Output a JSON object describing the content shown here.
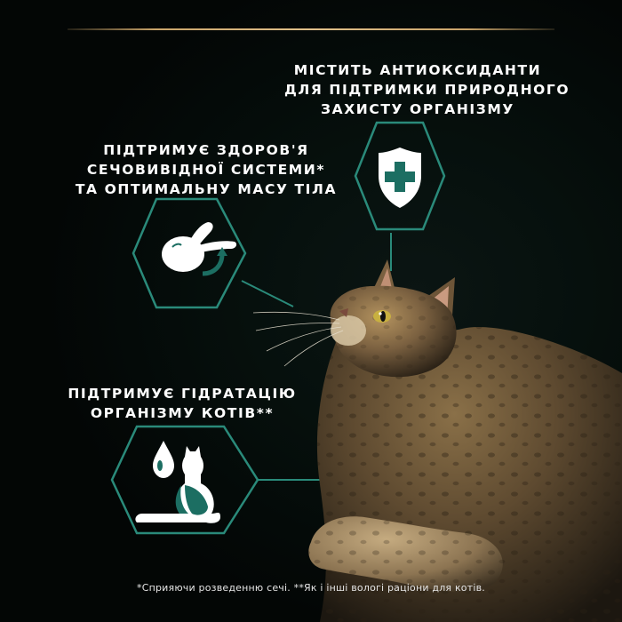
{
  "colors": {
    "background": "#050807",
    "accent_gold": "#c9a46a",
    "teal": "#1c6e62",
    "teal_outline": "#2a8a7a",
    "text": "#ffffff"
  },
  "benefits": {
    "antioxidants": {
      "lines": [
        "МІСТИТЬ АНТИОКСИДАНТИ",
        "ДЛЯ ПІДТРИМКИ ПРИРОДНОГО",
        "ЗАХИСТУ ОРГАНІЗМУ"
      ],
      "icon": "shield-cross-icon"
    },
    "urinary": {
      "lines": [
        "ПІДТРИМУЄ ЗДОРОВ'Я",
        "СЕЧОВИВІДНОЇ СИСТЕМИ*",
        "ТА ОПТИМАЛЬНУ МАСУ ТІЛА"
      ],
      "icon": "kidney-bladder-icon"
    },
    "hydration": {
      "lines": [
        "ПІДТРИМУЄ ГІДРАТАЦІЮ",
        "ОРГАНІЗМУ КОТІВ**"
      ],
      "icon": "cat-water-drop-icon"
    }
  },
  "footnote": "*Сприяючи розведенню сечі. **Як і інші вологі раціони для котів."
}
